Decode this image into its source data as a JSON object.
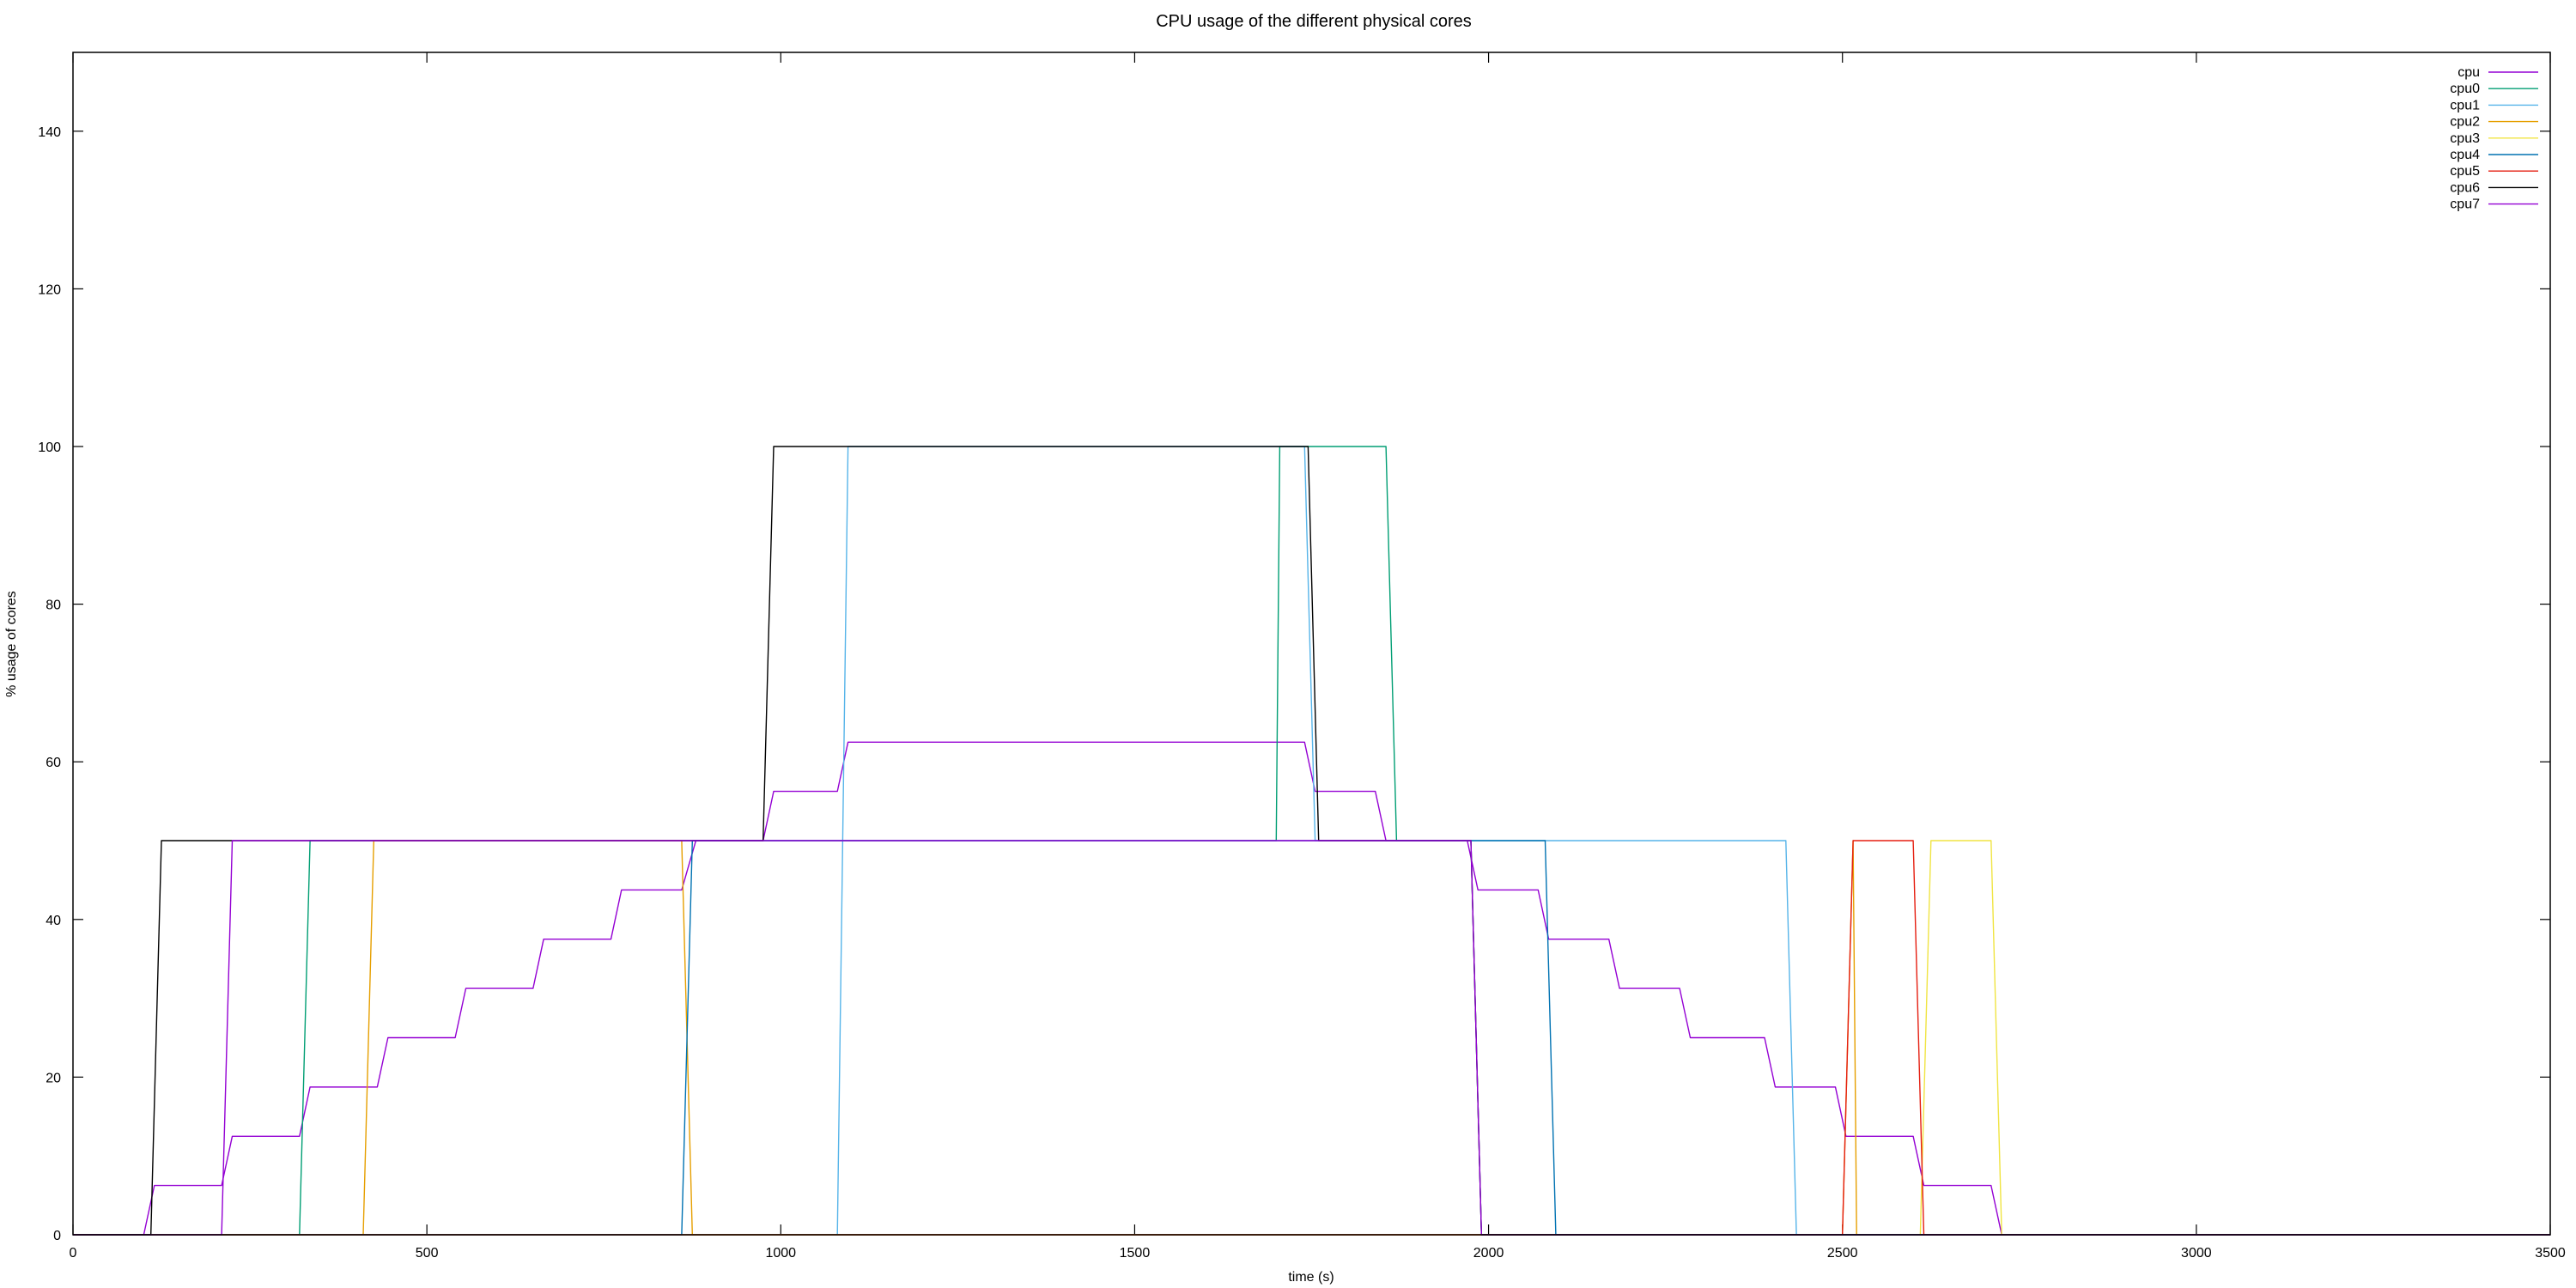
{
  "chart_data": {
    "type": "line",
    "title": "CPU usage of the different physical cores",
    "xlabel": "time (s)",
    "ylabel": "% usage of cores",
    "xlim": [
      0,
      3500
    ],
    "ylim": [
      0,
      150
    ],
    "x_ticks": [
      0,
      500,
      1000,
      1500,
      2000,
      2500,
      3000,
      3500
    ],
    "y_ticks": [
      0,
      20,
      40,
      60,
      80,
      100,
      120,
      140
    ],
    "grid": false,
    "legend_position": "top-right",
    "series": [
      {
        "name": "cpu",
        "color": "#9400d3",
        "points": [
          [
            0,
            0
          ],
          [
            100,
            0
          ],
          [
            115,
            6.25
          ],
          [
            210,
            6.25
          ],
          [
            225,
            12.5
          ],
          [
            320,
            12.5
          ],
          [
            335,
            18.75
          ],
          [
            430,
            18.75
          ],
          [
            445,
            25
          ],
          [
            540,
            25
          ],
          [
            555,
            31.25
          ],
          [
            650,
            31.25
          ],
          [
            665,
            37.5
          ],
          [
            760,
            37.5
          ],
          [
            775,
            43.75
          ],
          [
            860,
            43.75
          ],
          [
            880,
            50
          ],
          [
            975,
            50
          ],
          [
            990,
            56.25
          ],
          [
            1080,
            56.25
          ],
          [
            1095,
            62.5
          ],
          [
            1740,
            62.5
          ],
          [
            1755,
            56.25
          ],
          [
            1840,
            56.25
          ],
          [
            1855,
            50
          ],
          [
            1970,
            50
          ],
          [
            1985,
            43.75
          ],
          [
            2070,
            43.75
          ],
          [
            2085,
            37.5
          ],
          [
            2170,
            37.5
          ],
          [
            2185,
            31.25
          ],
          [
            2270,
            31.25
          ],
          [
            2285,
            25
          ],
          [
            2390,
            25
          ],
          [
            2405,
            18.75
          ],
          [
            2490,
            18.75
          ],
          [
            2505,
            12.5
          ],
          [
            2600,
            12.5
          ],
          [
            2615,
            6.25
          ],
          [
            2710,
            6.25
          ],
          [
            2725,
            0
          ],
          [
            3500,
            0
          ]
        ]
      },
      {
        "name": "cpu0",
        "color": "#009e73",
        "points": [
          [
            0,
            0
          ],
          [
            320,
            0
          ],
          [
            335,
            50
          ],
          [
            1700,
            50
          ],
          [
            1705,
            100
          ],
          [
            1855,
            100
          ],
          [
            1870,
            50
          ],
          [
            1975,
            50
          ],
          [
            1990,
            0
          ],
          [
            3500,
            0
          ]
        ]
      },
      {
        "name": "cpu1",
        "color": "#56b4e9",
        "points": [
          [
            0,
            0
          ],
          [
            1080,
            0
          ],
          [
            1095,
            100
          ],
          [
            1740,
            100
          ],
          [
            1755,
            50
          ],
          [
            2420,
            50
          ],
          [
            2435,
            0
          ],
          [
            3500,
            0
          ]
        ]
      },
      {
        "name": "cpu2",
        "color": "#e69f00",
        "points": [
          [
            0,
            0
          ],
          [
            410,
            0
          ],
          [
            425,
            50
          ],
          [
            860,
            50
          ],
          [
            875,
            0
          ],
          [
            2500,
            0
          ],
          [
            2515,
            50
          ],
          [
            2520,
            0
          ],
          [
            3500,
            0
          ]
        ]
      },
      {
        "name": "cpu3",
        "color": "#f0e442",
        "points": [
          [
            0,
            0
          ],
          [
            2610,
            0
          ],
          [
            2625,
            50
          ],
          [
            2710,
            50
          ],
          [
            2725,
            0
          ],
          [
            3500,
            0
          ]
        ]
      },
      {
        "name": "cpu4",
        "color": "#0072b2",
        "points": [
          [
            0,
            0
          ],
          [
            860,
            0
          ],
          [
            875,
            50
          ],
          [
            2080,
            50
          ],
          [
            2095,
            0
          ],
          [
            3500,
            0
          ]
        ]
      },
      {
        "name": "cpu5",
        "color": "#e51e10",
        "points": [
          [
            0,
            0
          ],
          [
            2500,
            0
          ],
          [
            2515,
            50
          ],
          [
            2600,
            50
          ],
          [
            2615,
            0
          ],
          [
            3500,
            0
          ]
        ]
      },
      {
        "name": "cpu6",
        "color": "#000000",
        "points": [
          [
            0,
            0
          ],
          [
            110,
            0
          ],
          [
            125,
            50
          ],
          [
            975,
            50
          ],
          [
            990,
            100
          ],
          [
            1745,
            100
          ],
          [
            1760,
            50
          ],
          [
            1975,
            50
          ],
          [
            1990,
            0
          ],
          [
            3500,
            0
          ]
        ]
      },
      {
        "name": "cpu7",
        "color": "#9400d3",
        "points": [
          [
            0,
            0
          ],
          [
            210,
            0
          ],
          [
            225,
            50
          ],
          [
            1975,
            50
          ],
          [
            1990,
            0
          ],
          [
            3500,
            0
          ]
        ]
      }
    ]
  }
}
